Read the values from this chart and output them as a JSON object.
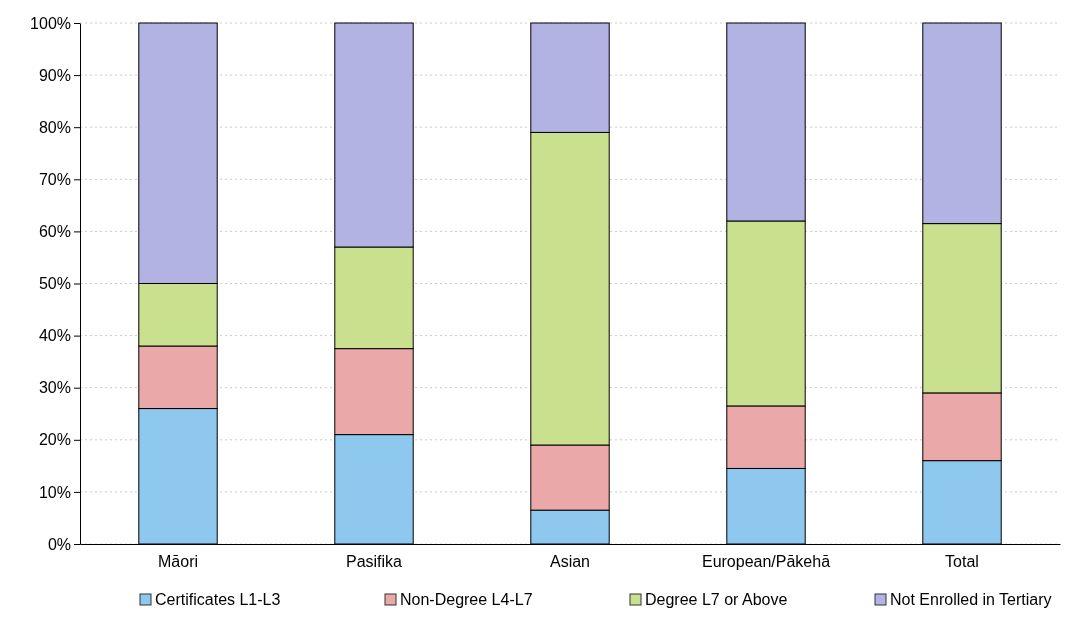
{
  "chart_data": {
    "type": "bar",
    "stacked": true,
    "categories": [
      "Māori",
      "Pasifika",
      "Asian",
      "European/Pākehā",
      "Total"
    ],
    "series": [
      {
        "name": "Certificates L1-L3",
        "color": "#8fc8ef",
        "values": [
          26,
          21,
          6.5,
          14.5,
          16
        ]
      },
      {
        "name": "Non-Degree L4-L7",
        "color": "#eaa8a8",
        "values": [
          12,
          16.5,
          12.5,
          12,
          13
        ]
      },
      {
        "name": "Degree L7 or Above",
        "color": "#c9e08f",
        "values": [
          12,
          19.5,
          60,
          35.5,
          32.5
        ]
      },
      {
        "name": "Not Enrolled in Tertiary",
        "color": "#b3b3e3",
        "values": [
          50,
          43,
          21,
          38,
          38.5
        ]
      }
    ],
    "ylim": [
      0,
      100
    ],
    "yticks": [
      {
        "value": 0,
        "label": "0%"
      },
      {
        "value": 10,
        "label": "10%"
      },
      {
        "value": 20,
        "label": "20%"
      },
      {
        "value": 30,
        "label": "30%"
      },
      {
        "value": 40,
        "label": "40%"
      },
      {
        "value": 50,
        "label": "50%"
      },
      {
        "value": 60,
        "label": "60%"
      },
      {
        "value": 70,
        "label": "70%"
      },
      {
        "value": 80,
        "label": "80%"
      },
      {
        "value": 90,
        "label": "90%"
      },
      {
        "value": 100,
        "label": "100%"
      }
    ],
    "grid": "y",
    "legend": "bottom"
  }
}
